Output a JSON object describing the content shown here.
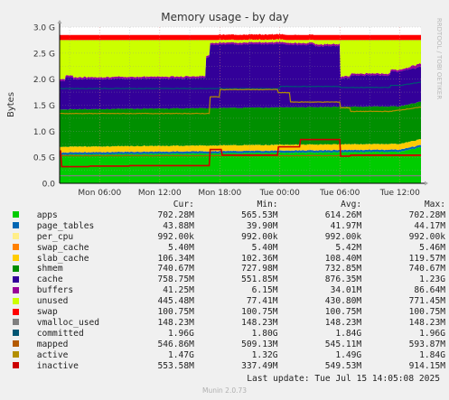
{
  "chart_data": {
    "type": "area",
    "title": "Memory usage - by day",
    "ylabel": "Bytes",
    "side_label": "RRDTOOL / TOBI OETIKER",
    "ylim": [
      0,
      3.0
    ],
    "y_unit": "G",
    "y_ticks": [
      "0.0",
      "0.5 G",
      "1.0 G",
      "1.5 G",
      "2.0 G",
      "2.5 G",
      "3.0 G"
    ],
    "x_ticks": [
      "Mon 06:00",
      "Mon 12:00",
      "Mon 18:00",
      "Tue 00:00",
      "Tue 06:00",
      "Tue 12:00"
    ],
    "x_tick_hours": [
      6,
      12,
      18,
      24,
      30,
      36
    ],
    "xlim_hours": [
      2,
      38.1
    ],
    "grid": true,
    "columns": [
      "Cur:",
      "Min:",
      "Avg:",
      "Max:"
    ],
    "series": [
      {
        "name": "apps",
        "color": "#00cc00",
        "cur": "702.28M",
        "min": "565.53M",
        "avg": "614.26M",
        "max": "702.28M"
      },
      {
        "name": "page_tables",
        "color": "#0066b3",
        "cur": "43.88M",
        "min": "39.90M",
        "avg": "41.97M",
        "max": "44.17M"
      },
      {
        "name": "per_cpu",
        "color": "#ffee88",
        "cur": "992.00k",
        "min": "992.00k",
        "avg": "992.00k",
        "max": "992.00k"
      },
      {
        "name": "swap_cache",
        "color": "#ff8000",
        "cur": "5.40M",
        "min": "5.40M",
        "avg": "5.42M",
        "max": "5.46M"
      },
      {
        "name": "slab_cache",
        "color": "#ffcc00",
        "cur": "106.34M",
        "min": "102.36M",
        "avg": "108.40M",
        "max": "119.57M"
      },
      {
        "name": "shmem",
        "color": "#008f00",
        "cur": "740.67M",
        "min": "727.98M",
        "avg": "732.85M",
        "max": "740.67M"
      },
      {
        "name": "cache",
        "color": "#330099",
        "cur": "758.75M",
        "min": "551.85M",
        "avg": "876.35M",
        "max": "1.23G"
      },
      {
        "name": "buffers",
        "color": "#990099",
        "cur": "41.25M",
        "min": "6.15M",
        "avg": "34.01M",
        "max": "86.64M"
      },
      {
        "name": "unused",
        "color": "#ccff00",
        "cur": "445.48M",
        "min": "77.41M",
        "avg": "430.80M",
        "max": "771.45M"
      },
      {
        "name": "swap",
        "color": "#ff0000",
        "cur": "100.75M",
        "min": "100.75M",
        "avg": "100.75M",
        "max": "100.75M"
      },
      {
        "name": "vmalloc_used",
        "color": "#808080",
        "cur": "148.23M",
        "min": "148.23M",
        "avg": "148.23M",
        "max": "148.23M"
      },
      {
        "name": "committed",
        "color": "#005573",
        "cur": "1.96G",
        "min": "1.80G",
        "avg": "1.84G",
        "max": "1.96G"
      },
      {
        "name": "mapped",
        "color": "#b35a00",
        "cur": "546.86M",
        "min": "509.13M",
        "avg": "545.11M",
        "max": "593.87M"
      },
      {
        "name": "active",
        "color": "#b38f00",
        "cur": "1.47G",
        "min": "1.32G",
        "avg": "1.49G",
        "max": "1.84G"
      },
      {
        "name": "inactive",
        "color": "#cc0000",
        "cur": "553.58M",
        "min": "337.49M",
        "avg": "549.53M",
        "max": "914.15M"
      }
    ]
  },
  "footer": {
    "last_update": "Last update: Tue Jul 15 14:05:08 2025",
    "generator": "Munin 2.0.73"
  }
}
